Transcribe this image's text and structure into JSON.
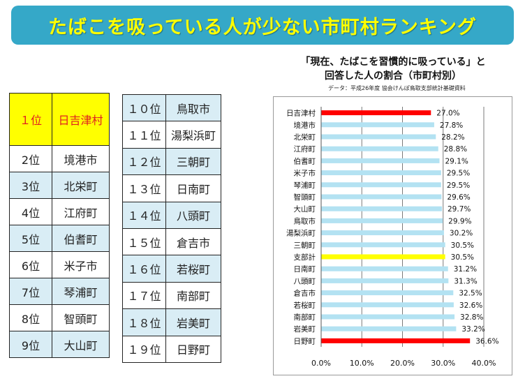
{
  "banner": {
    "title": "たばこを吸っている人が少ない市町村ランキング"
  },
  "ranking": {
    "left": [
      {
        "rank": "１位",
        "name": "日吉津村"
      },
      {
        "rank": "2位",
        "name": "境港市"
      },
      {
        "rank": "3位",
        "name": "北栄町"
      },
      {
        "rank": "4位",
        "name": "江府町"
      },
      {
        "rank": "5位",
        "name": "伯耆町"
      },
      {
        "rank": "6位",
        "name": "米子市"
      },
      {
        "rank": "7位",
        "name": "琴浦町"
      },
      {
        "rank": "8位",
        "name": "智頭町"
      },
      {
        "rank": "9位",
        "name": "大山町"
      }
    ],
    "right": [
      {
        "rank": "１０位",
        "name": "鳥取市"
      },
      {
        "rank": "１１位",
        "name": "湯梨浜町"
      },
      {
        "rank": "１２位",
        "name": "三朝町"
      },
      {
        "rank": "１３位",
        "name": "日南町"
      },
      {
        "rank": "１４位",
        "name": "八頭町"
      },
      {
        "rank": "１５位",
        "name": "倉吉市"
      },
      {
        "rank": "１６位",
        "name": "若桜町"
      },
      {
        "rank": "１７位",
        "name": "南部町"
      },
      {
        "rank": "１８位",
        "name": "岩美町"
      },
      {
        "rank": "１９位",
        "name": "日野町"
      }
    ]
  },
  "chart_data": {
    "type": "bar",
    "orientation": "horizontal",
    "title_line1": "「現在、たばこを習慣的に吸っている」と",
    "title_line2": "回答した人の割合（市町村別）",
    "source": "データ：平成26年度 協会けんぽ鳥取支部統計基礎資料",
    "categories": [
      "日吉津村",
      "境港市",
      "北栄町",
      "江府町",
      "伯耆町",
      "米子市",
      "琴浦町",
      "智頭町",
      "大山町",
      "鳥取市",
      "湯梨浜町",
      "三朝町",
      "支部計",
      "日南町",
      "八頭町",
      "倉吉市",
      "若桜町",
      "南部町",
      "岩美町",
      "日野町"
    ],
    "values": [
      27.0,
      27.8,
      28.2,
      28.8,
      29.1,
      29.5,
      29.5,
      29.6,
      29.7,
      29.9,
      30.2,
      30.5,
      30.5,
      31.2,
      31.3,
      32.5,
      32.6,
      32.8,
      33.2,
      36.6
    ],
    "value_labels": [
      "27.0%",
      "27.8%",
      "28.2%",
      "28.8%",
      "29.1%",
      "29.5%",
      "29.5%",
      "29.6%",
      "29.7%",
      "29.9%",
      "30.2%",
      "30.5%",
      "30.5%",
      "31.2%",
      "31.3%",
      "32.5%",
      "32.6%",
      "32.8%",
      "33.2%",
      "36.6%"
    ],
    "xlim": [
      0,
      40
    ],
    "xticks": [
      0,
      10,
      20,
      30,
      40
    ],
    "xtick_labels": [
      "0.0%",
      "10.0%",
      "20.0%",
      "30.0%",
      "40.0%"
    ],
    "grid": true,
    "colors": {
      "default": "#b3e2f2",
      "highlight_red": "#ff0000",
      "highlight_yellow": "#ffff00"
    },
    "bar_colors": [
      "#ff0000",
      "#b3e2f2",
      "#b3e2f2",
      "#b3e2f2",
      "#b3e2f2",
      "#b3e2f2",
      "#b3e2f2",
      "#b3e2f2",
      "#b3e2f2",
      "#b3e2f2",
      "#b3e2f2",
      "#b3e2f2",
      "#ffff00",
      "#b3e2f2",
      "#b3e2f2",
      "#b3e2f2",
      "#b3e2f2",
      "#b3e2f2",
      "#b3e2f2",
      "#ff0000"
    ]
  }
}
